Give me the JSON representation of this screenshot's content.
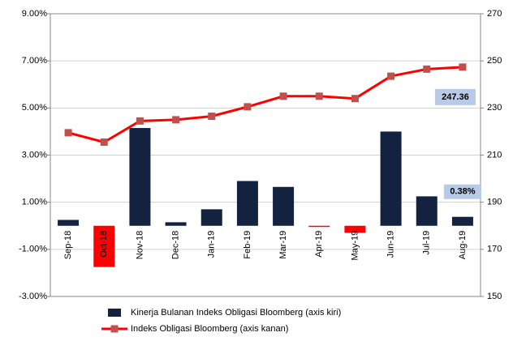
{
  "chart_data": {
    "type": "bar-line",
    "categories": [
      "Sep-18",
      "Oct-18",
      "Nov-18",
      "Dec-18",
      "Jan-19",
      "Feb-19",
      "Mar-19",
      "Apr-19",
      "May-19",
      "Jun-19",
      "Jul-19",
      "Aug-19"
    ],
    "series": [
      {
        "name": "Kinerja Bulanan Indeks Obligasi Bloomberg (axis kiri)",
        "type": "bar",
        "color": "#13233f",
        "colors": [
          "#13233f",
          "#ff0000",
          "#13233f",
          "#13233f",
          "#13233f",
          "#13233f",
          "#13233f",
          "#ff0000",
          "#ff0000",
          "#13233f",
          "#13233f",
          "#13233f"
        ],
        "values": [
          0.25,
          -1.75,
          4.15,
          0.15,
          0.7,
          1.9,
          1.65,
          -0.05,
          -0.3,
          4.0,
          1.25,
          0.38
        ],
        "value_labels": [
          null,
          null,
          null,
          null,
          null,
          null,
          null,
          null,
          null,
          null,
          null,
          "0.38%"
        ]
      },
      {
        "name": "Indeks Obligasi Bloomberg (axis kanan)",
        "type": "line",
        "axis": "y2",
        "color": "#ff0000",
        "marker_color": "#c0504d",
        "values": [
          219.5,
          215.5,
          224.5,
          225,
          226.5,
          230.5,
          235,
          235,
          234,
          243.5,
          246.5,
          247.36
        ],
        "value_labels": [
          null,
          null,
          null,
          null,
          null,
          null,
          null,
          null,
          null,
          null,
          null,
          "247.36"
        ]
      }
    ],
    "ylim": [
      -3,
      9
    ],
    "yticks": [
      {
        "value": -3,
        "label": "-3.00%"
      },
      {
        "value": -1,
        "label": "-1.00%"
      },
      {
        "value": 1,
        "label": "1.00%"
      },
      {
        "value": 3,
        "label": "3.00%"
      },
      {
        "value": 5,
        "label": "5.00%"
      },
      {
        "value": 7,
        "label": "7.00%"
      },
      {
        "value": 9,
        "label": "9.00%"
      }
    ],
    "y2lim": [
      150,
      270
    ],
    "y2ticks": [
      150,
      170,
      190,
      210,
      230,
      250,
      270
    ],
    "grid": true
  }
}
